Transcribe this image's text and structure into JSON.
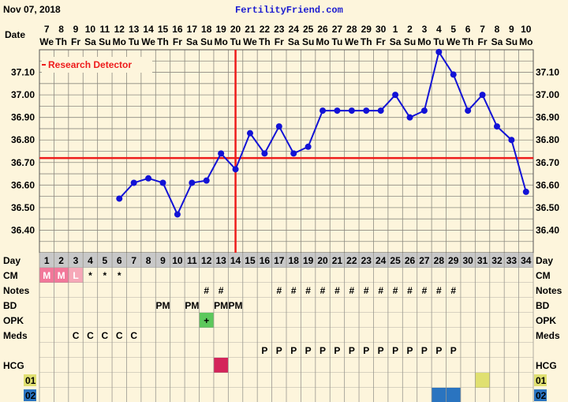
{
  "header": {
    "date": "Nov 07, 2018",
    "site": "FertilityFriend.com",
    "date_row_label": "Date"
  },
  "dates": [
    {
      "n": "7",
      "w": "We"
    },
    {
      "n": "8",
      "w": "Th"
    },
    {
      "n": "9",
      "w": "Fr"
    },
    {
      "n": "10",
      "w": "Sa"
    },
    {
      "n": "11",
      "w": "Su"
    },
    {
      "n": "12",
      "w": "Mo"
    },
    {
      "n": "13",
      "w": "Tu"
    },
    {
      "n": "14",
      "w": "We"
    },
    {
      "n": "15",
      "w": "Th"
    },
    {
      "n": "16",
      "w": "Fr"
    },
    {
      "n": "17",
      "w": "Sa"
    },
    {
      "n": "18",
      "w": "Su"
    },
    {
      "n": "19",
      "w": "Mo"
    },
    {
      "n": "20",
      "w": "Tu"
    },
    {
      "n": "21",
      "w": "We"
    },
    {
      "n": "22",
      "w": "Th"
    },
    {
      "n": "23",
      "w": "Fr"
    },
    {
      "n": "24",
      "w": "Sa"
    },
    {
      "n": "25",
      "w": "Su"
    },
    {
      "n": "26",
      "w": "Mo"
    },
    {
      "n": "27",
      "w": "Tu"
    },
    {
      "n": "28",
      "w": "We"
    },
    {
      "n": "29",
      "w": "Th"
    },
    {
      "n": "30",
      "w": "Fr"
    },
    {
      "n": "1",
      "w": "Sa"
    },
    {
      "n": "2",
      "w": "Su"
    },
    {
      "n": "3",
      "w": "Mo"
    },
    {
      "n": "4",
      "w": "Tu"
    },
    {
      "n": "5",
      "w": "We"
    },
    {
      "n": "6",
      "w": "Th"
    },
    {
      "n": "7",
      "w": "Fr"
    },
    {
      "n": "8",
      "w": "Sa"
    },
    {
      "n": "9",
      "w": "Su"
    },
    {
      "n": "10",
      "w": "Mo"
    }
  ],
  "legend": {
    "research_detector": "Research Detector"
  },
  "chart_data": {
    "type": "line",
    "x": [
      6,
      7,
      8,
      9,
      10,
      11,
      12,
      13,
      14,
      15,
      16,
      17,
      18,
      19,
      20,
      21,
      22,
      23,
      24,
      25,
      26,
      27,
      28,
      29,
      30,
      31,
      32,
      33,
      34
    ],
    "values": [
      36.54,
      36.61,
      36.63,
      36.61,
      36.47,
      36.61,
      36.62,
      36.74,
      36.67,
      36.83,
      36.74,
      36.86,
      36.74,
      36.77,
      36.93,
      36.93,
      36.93,
      36.93,
      36.93,
      37.0,
      36.9,
      36.93,
      37.19,
      37.09,
      36.93,
      37.0,
      36.86,
      36.8,
      36.57
    ],
    "x_range": [
      1,
      34
    ],
    "ylim": [
      36.3,
      37.2
    ],
    "y_ticks": [
      "37.10",
      "37.00",
      "36.90",
      "36.80",
      "36.70",
      "36.60",
      "36.50",
      "36.40"
    ],
    "y_tick_values": [
      37.1,
      37.0,
      36.9,
      36.8,
      36.7,
      36.6,
      36.5,
      36.4
    ],
    "coverline": 36.72,
    "ovulation_day": 14,
    "series_color": "#1212d6",
    "coverline_color": "#ee1c1c",
    "grid": true
  },
  "table": {
    "rows": [
      {
        "label": "Day",
        "kind": "day"
      },
      {
        "label": "CM",
        "cells": {
          "1": "M",
          "2": "M",
          "3": "L",
          "4": "*",
          "5": "*",
          "6": "*"
        },
        "highlight": {
          "1": "#f2789a",
          "2": "#f2789a",
          "3": "#f6a8b8"
        }
      },
      {
        "label": "Notes",
        "cells": {
          "12": "#",
          "13": "#",
          "17": "#",
          "18": "#",
          "19": "#",
          "20": "#",
          "21": "#",
          "22": "#",
          "23": "#",
          "24": "#",
          "25": "#",
          "26": "#",
          "27": "#",
          "28": "#",
          "29": "#"
        }
      },
      {
        "label": "BD",
        "cells": {
          "9": "PM",
          "11": "PM",
          "13": "PM",
          "14": "PM"
        }
      },
      {
        "label": "OPK",
        "cells": {
          "12": "+"
        },
        "highlight": {
          "12": "#5cc85c"
        }
      },
      {
        "label": "Meds",
        "cells": {
          "3": "C",
          "4": "C",
          "5": "C",
          "6": "C",
          "7": "C"
        }
      },
      {
        "label": "",
        "cells": {
          "16": "P",
          "17": "P",
          "18": "P",
          "19": "P",
          "20": "P",
          "21": "P",
          "22": "P",
          "23": "P",
          "24": "P",
          "25": "P",
          "26": "P",
          "27": "P",
          "28": "P",
          "29": "P"
        }
      },
      {
        "label": "HCG",
        "cells": {},
        "highlight": {
          "13": "#d4245a"
        }
      },
      {
        "label": "01",
        "badge": "#e0e070",
        "cells": {},
        "highlight": {
          "31": "#e0e070"
        }
      },
      {
        "label": "02",
        "badge": "#2a74c0",
        "cells": {},
        "highlight": {
          "28": "#2a74c0",
          "29": "#2a74c0"
        }
      }
    ]
  }
}
